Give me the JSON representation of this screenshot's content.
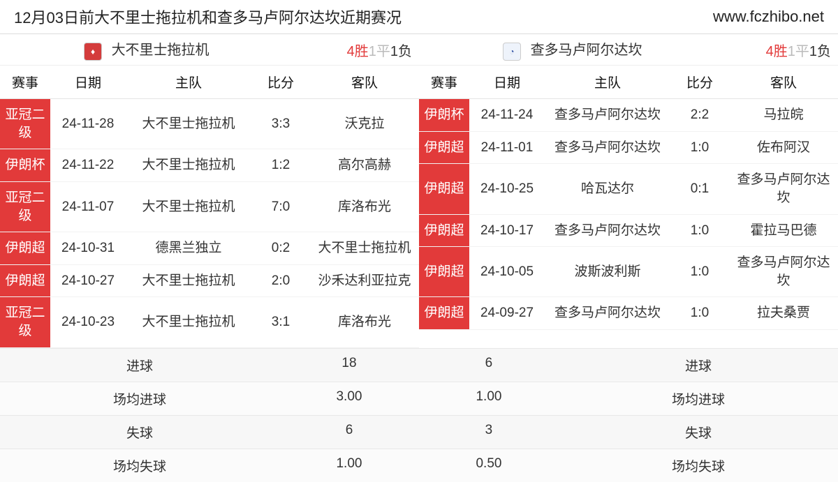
{
  "header": {
    "title": "12月03日前大不里士拖拉机和查多马卢阿尔达坎近期赛况",
    "site": "www.fczhibo.net"
  },
  "colors": {
    "comp_bg": "#e23a3a",
    "comp_fg": "#ffffff",
    "win": "#e23a3a",
    "draw": "#bbbbbb",
    "lose": "#333333",
    "border": "#e5e5e5",
    "summary_bg": "#f7f7f7"
  },
  "columns": [
    "赛事",
    "日期",
    "主队",
    "比分",
    "客队"
  ],
  "col_widths_pct": [
    12,
    18,
    30,
    14,
    26
  ],
  "left": {
    "team": "大不里士拖拉机",
    "logo_text": "♦",
    "logo_style": "red",
    "record": {
      "win": "4胜",
      "draw": "1平",
      "lose": "1负"
    },
    "rows": [
      {
        "comp": "亚冠二级",
        "date": "24-11-28",
        "home": "大不里士拖拉机",
        "score": "3:3",
        "away": "沃克拉"
      },
      {
        "comp": "伊朗杯",
        "date": "24-11-22",
        "home": "大不里士拖拉机",
        "score": "1:2",
        "away": "高尔高赫"
      },
      {
        "comp": "亚冠二级",
        "date": "24-11-07",
        "home": "大不里士拖拉机",
        "score": "7:0",
        "away": "库洛布光"
      },
      {
        "comp": "伊朗超",
        "date": "24-10-31",
        "home": "德黑兰独立",
        "score": "0:2",
        "away": "大不里士拖拉机"
      },
      {
        "comp": "伊朗超",
        "date": "24-10-27",
        "home": "大不里士拖拉机",
        "score": "2:0",
        "away": "沙禾达利亚拉克"
      },
      {
        "comp": "亚冠二级",
        "date": "24-10-23",
        "home": "大不里士拖拉机",
        "score": "3:1",
        "away": "库洛布光"
      }
    ]
  },
  "right": {
    "team": "查多马卢阿尔达坎",
    "logo_text": "◔",
    "logo_style": "blue",
    "record": {
      "win": "4胜",
      "draw": "1平",
      "lose": "1负"
    },
    "rows": [
      {
        "comp": "伊朗杯",
        "date": "24-11-24",
        "home": "查多马卢阿尔达坎",
        "score": "2:2",
        "away": "马拉皖"
      },
      {
        "comp": "伊朗超",
        "date": "24-11-01",
        "home": "查多马卢阿尔达坎",
        "score": "1:0",
        "away": "佐布阿汉"
      },
      {
        "comp": "伊朗超",
        "date": "24-10-25",
        "home": "哈瓦达尔",
        "score": "0:1",
        "away": "查多马卢阿尔达坎"
      },
      {
        "comp": "伊朗超",
        "date": "24-10-17",
        "home": "查多马卢阿尔达坎",
        "score": "1:0",
        "away": "霍拉马巴德"
      },
      {
        "comp": "伊朗超",
        "date": "24-10-05",
        "home": "波斯波利斯",
        "score": "1:0",
        "away": "查多马卢阿尔达坎"
      },
      {
        "comp": "伊朗超",
        "date": "24-09-27",
        "home": "查多马卢阿尔达坎",
        "score": "1:0",
        "away": "拉夫桑贾"
      }
    ]
  },
  "summary": {
    "labels": {
      "goals": "进球",
      "avg_goals": "场均进球",
      "conceded": "失球",
      "avg_conceded": "场均失球"
    },
    "left": {
      "goals": "18",
      "avg_goals": "3.00",
      "conceded": "6",
      "avg_conceded": "1.00"
    },
    "right": {
      "goals": "6",
      "avg_goals": "1.00",
      "conceded": "3",
      "avg_conceded": "0.50"
    }
  }
}
